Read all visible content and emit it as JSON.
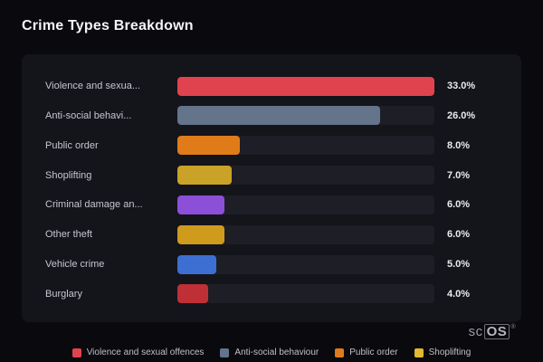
{
  "page": {
    "title": "Crime Types Breakdown"
  },
  "chart_data": {
    "type": "bar",
    "orientation": "horizontal",
    "title": "Crime Types Breakdown",
    "xlim": [
      0,
      33
    ],
    "grid": false,
    "legend_position": "bottom",
    "categories": [
      "Violence and sexual offences",
      "Anti-social behaviour",
      "Public order",
      "Shoplifting",
      "Criminal damage and arson",
      "Other theft",
      "Vehicle crime",
      "Burglary"
    ],
    "values": [
      33.0,
      26.0,
      8.0,
      7.0,
      6.0,
      6.0,
      5.0,
      4.0
    ],
    "bars": [
      {
        "label_display": "Violence and sexua...",
        "label_full": "Violence and sexual offences",
        "value": 33.0,
        "value_label": "33.0%",
        "color": "#e0434e"
      },
      {
        "label_display": "Anti-social behavi...",
        "label_full": "Anti-social behaviour",
        "value": 26.0,
        "value_label": "26.0%",
        "color": "#64748b"
      },
      {
        "label_display": "Public order",
        "label_full": "Public order",
        "value": 8.0,
        "value_label": "8.0%",
        "color": "#e07b1a"
      },
      {
        "label_display": "Shoplifting",
        "label_full": "Shoplifting",
        "value": 7.0,
        "value_label": "7.0%",
        "color": "#c9a227"
      },
      {
        "label_display": "Criminal damage an...",
        "label_full": "Criminal damage and arson",
        "value": 6.0,
        "value_label": "6.0%",
        "color": "#8b4fd8"
      },
      {
        "label_display": "Other theft",
        "label_full": "Other theft",
        "value": 6.0,
        "value_label": "6.0%",
        "color": "#cf9b1d"
      },
      {
        "label_display": "Vehicle crime",
        "label_full": "Vehicle crime",
        "value": 5.0,
        "value_label": "5.0%",
        "color": "#3c6fd1"
      },
      {
        "label_display": "Burglary",
        "label_full": "Burglary",
        "value": 4.0,
        "value_label": "4.0%",
        "color": "#bf3036"
      }
    ]
  },
  "legend": {
    "items": [
      {
        "label": "Violence and sexual offences",
        "color": "#e0434e"
      },
      {
        "label": "Anti-social behaviour",
        "color": "#64748b"
      },
      {
        "label": "Public order",
        "color": "#e07b1a"
      },
      {
        "label": "Shoplifting",
        "color": "#e3b92e"
      }
    ]
  },
  "watermark": {
    "text_left": "sc",
    "text_right": "OS",
    "registered": "®"
  },
  "colors": {
    "background": "#0a0a0e",
    "panel": "#14141b",
    "track": "#1e1e27",
    "title_text": "#f5f5f7",
    "label_text": "#c6c6cf",
    "value_text": "#e9e9ee"
  }
}
